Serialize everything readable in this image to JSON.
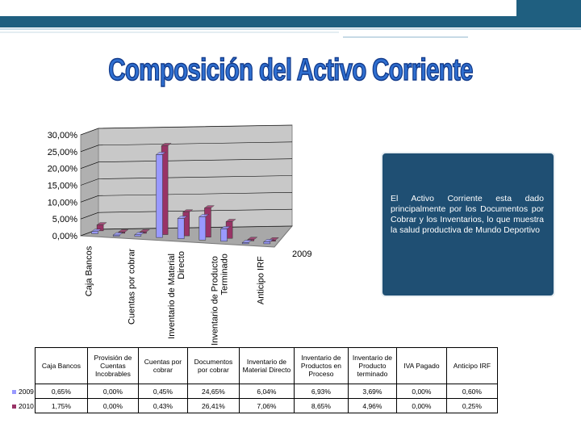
{
  "title": "Composición del Activo Corriente",
  "chart_data": {
    "type": "bar3d",
    "categories": [
      "Caja Bancos",
      null,
      "Cuentas por cobrar",
      null,
      "Inventario de Material Directo",
      null,
      "Inventario de Producto Terminado",
      null,
      "Anticipo IRF"
    ],
    "series": [
      {
        "name": "2009",
        "color": "#9999ff",
        "values": [
          0.65,
          0,
          0.45,
          24.65,
          6.04,
          6.93,
          3.69,
          0,
          0.6
        ]
      },
      {
        "name": "2010",
        "color": "#993366",
        "values": [
          1.75,
          0,
          0.43,
          26.41,
          7.06,
          8.65,
          4.96,
          0,
          0.25
        ]
      }
    ],
    "ylim": [
      0,
      30
    ],
    "yticks": [
      {
        "value": 0,
        "label": "0,00%"
      },
      {
        "value": 5,
        "label": "5,00%"
      },
      {
        "value": 10,
        "label": "10,00%"
      },
      {
        "value": 15,
        "label": "15,00%"
      },
      {
        "value": 20,
        "label": "20,00%"
      },
      {
        "value": 25,
        "label": "25,00%"
      },
      {
        "value": 30,
        "label": "30,00%"
      }
    ],
    "grid": true
  },
  "note": "El Activo Corriente esta dado principalmente por los Documentos por Cobrar y los Inventarios, lo que muestra la salud productiva de Mundo Deportivo",
  "table": {
    "header": [
      "Caja Bancos",
      "Provisión de Cuentas Incobrables",
      "Cuentas por cobrar",
      "Documentos por cobrar",
      "Inventario de Material Directo",
      "Inventario de Productos en Proceso",
      "Inventario de Producto terminado",
      "IVA Pagado",
      "Anticipo IRF"
    ],
    "rows": [
      [
        "0,65%",
        "0,00%",
        "0,45%",
        "24,65%",
        "6,04%",
        "6,93%",
        "3,69%",
        "0,00%",
        "0,60%"
      ],
      [
        "1,75%",
        "0,00%",
        "0,43%",
        "26,41%",
        "7,06%",
        "8,65%",
        "4,96%",
        "0,00%",
        "0,25%"
      ]
    ]
  }
}
